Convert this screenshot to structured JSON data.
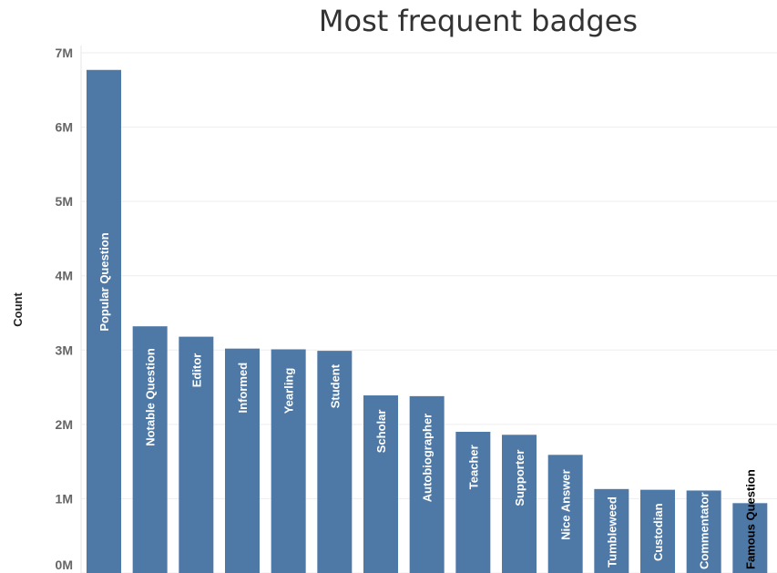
{
  "chart_data": {
    "type": "bar",
    "title": "Most frequent badges",
    "xlabel": "",
    "ylabel": "Count",
    "ylim": [
      0,
      7000000
    ],
    "y_ticks": [
      0,
      1000000,
      2000000,
      3000000,
      4000000,
      5000000,
      6000000,
      7000000
    ],
    "y_tick_labels": [
      "0M",
      "1M",
      "2M",
      "3M",
      "4M",
      "5M",
      "6M",
      "7M"
    ],
    "grid": true,
    "bar_color": "#4e79a7",
    "categories": [
      "Popular Question",
      "Notable Question",
      "Editor",
      "Informed",
      "Yearling",
      "Student",
      "Scholar",
      "Autobiographer",
      "Teacher",
      "Supporter",
      "Nice Answer",
      "Tumbleweed",
      "Custodian",
      "Commentator",
      "Famous Question"
    ],
    "values": [
      6770000,
      3320000,
      3180000,
      3020000,
      3010000,
      2990000,
      2390000,
      2380000,
      1900000,
      1860000,
      1590000,
      1130000,
      1120000,
      1110000,
      940000
    ],
    "label_color_inside": "#ffffff",
    "label_color_outside": "#000000"
  }
}
